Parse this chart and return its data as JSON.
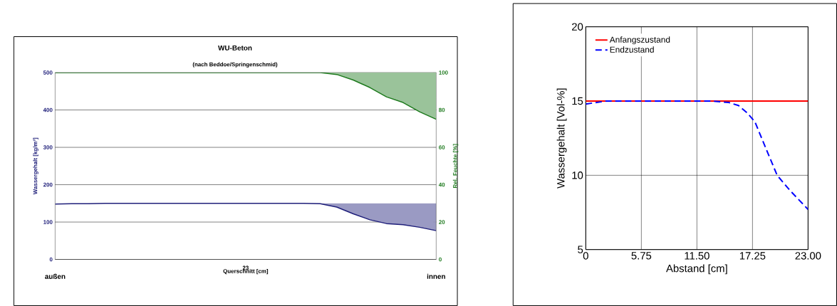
{
  "chart_data": [
    {
      "type": "line",
      "title": "WU-Beton",
      "subtitle": "(nach Beddoe/Springenschmid)",
      "xlabel": "Querschnitt [cm]",
      "ylabel": "Wassergehalt [kg/m³]",
      "y2label": "Rel. Feuchte [%]",
      "annotations": [
        "außen",
        "23",
        "innen"
      ],
      "categories": [
        null,
        null,
        null,
        null,
        null,
        null,
        null,
        null,
        null,
        null,
        null,
        null,
        null,
        null,
        null,
        null,
        null,
        null,
        null,
        null,
        null,
        null,
        null,
        null
      ],
      "ylim": [
        0,
        500
      ],
      "yticks": [
        0,
        100,
        200,
        300,
        400,
        500
      ],
      "y2lim": [
        0,
        100
      ],
      "y2ticks": [
        0,
        20,
        40,
        60,
        80,
        100
      ],
      "grid": "y",
      "series": [
        {
          "color": "#1f1f7a",
          "values": [
            148,
            149,
            149,
            150,
            150,
            150,
            150,
            150,
            150,
            150,
            150,
            150,
            150,
            150,
            150,
            150,
            149,
            140,
            122,
            106,
            96,
            93,
            86,
            77
          ],
          "lower": [
            148,
            149,
            149,
            150,
            150,
            150,
            150,
            150,
            150,
            150,
            150,
            150,
            150,
            150,
            150,
            150,
            149,
            140,
            122,
            106,
            96,
            93,
            86,
            77
          ],
          "upper": [
            148,
            149,
            149,
            150,
            150,
            150,
            150,
            150,
            150,
            150,
            150,
            150,
            150,
            150,
            150,
            150,
            150,
            150,
            150,
            150,
            150,
            150,
            150,
            150
          ]
        },
        {
          "color": "#1e7a1e",
          "axis": "y2",
          "values": [
            100,
            100,
            100,
            100,
            100,
            100,
            100,
            100,
            100,
            100,
            100,
            100,
            100,
            100,
            100,
            100,
            100,
            99,
            96,
            92,
            87,
            84,
            79,
            75
          ],
          "lower": [
            100,
            100,
            100,
            100,
            100,
            100,
            100,
            100,
            100,
            100,
            100,
            100,
            100,
            100,
            100,
            100,
            100,
            99,
            96,
            92,
            87,
            84,
            79,
            75
          ],
          "upper": [
            100,
            100,
            100,
            100,
            100,
            100,
            100,
            100,
            100,
            100,
            100,
            100,
            100,
            100,
            100,
            100,
            100,
            100,
            100,
            100,
            100,
            100,
            100,
            100
          ]
        }
      ]
    },
    {
      "type": "line",
      "xlabel": "Abstand [cm]",
      "ylabel": "Wassergehalt [Vol-%]",
      "xlim": [
        0,
        23
      ],
      "xticks": [
        0,
        5.75,
        {
          "value": 11.5,
          "label": "11.50"
        },
        17.25,
        {
          "value": 23,
          "label": "23.00"
        }
      ],
      "ylim": [
        5,
        20
      ],
      "yticks": [
        5,
        10,
        15,
        20
      ],
      "grid": true,
      "legend": "top left",
      "series": [
        {
          "name": "Anfangszustand",
          "color": "#ff0000",
          "line_style": "solid",
          "x": [
            0,
            23
          ],
          "values": [
            15,
            15
          ]
        },
        {
          "name": "Endzustand",
          "color": "#0000ff",
          "line_style": "dashed",
          "x": [
            0,
            2.1,
            5.8,
            13.1,
            14.8,
            15.8,
            16.7,
            17.5,
            18.2,
            18.9,
            19.8,
            21.1,
            23
          ],
          "values": [
            14.8,
            15.0,
            15.0,
            15.0,
            14.9,
            14.7,
            14.2,
            13.6,
            12.5,
            11.4,
            10.0,
            9.0,
            7.7
          ]
        }
      ]
    }
  ]
}
